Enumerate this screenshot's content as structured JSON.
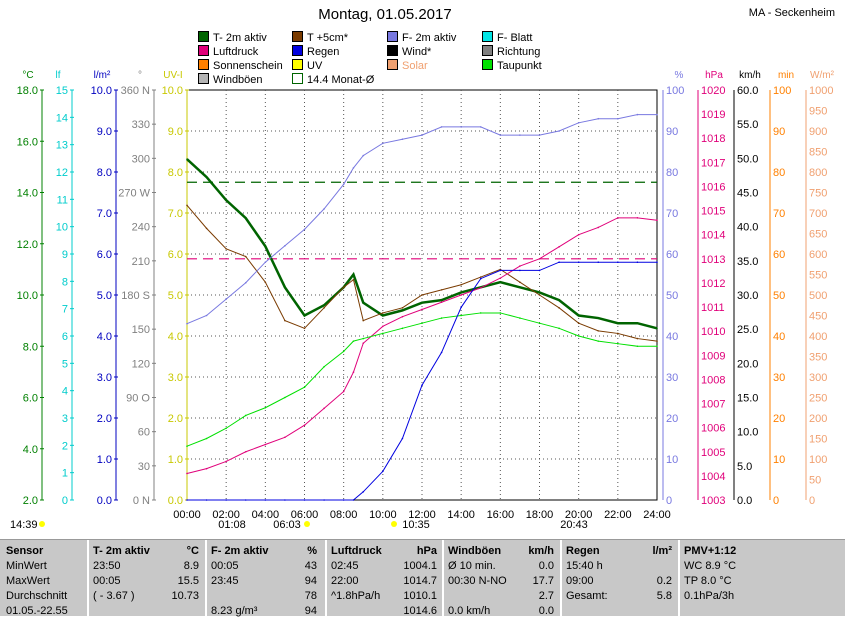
{
  "title": "Montag, 01.05.2017",
  "station": "MA - Seckenheim",
  "legend": [
    {
      "label": "T- 2m aktiv",
      "color": "#006400"
    },
    {
      "label": "T +5cm*",
      "color": "#7a3b00"
    },
    {
      "label": "F- 2m aktiv",
      "color": "#7878e0"
    },
    {
      "label": "F- Blatt",
      "color": "#00e5e5"
    },
    {
      "label": "Luftdruck",
      "color": "#e0007a"
    },
    {
      "label": "Regen",
      "color": "#0000e0"
    },
    {
      "label": "Wind*",
      "color": "#000000"
    },
    {
      "label": "Richtung",
      "color": "#808080"
    },
    {
      "label": "Sonnenschein",
      "color": "#ff8000"
    },
    {
      "label": "UV",
      "color": "#ffff00"
    },
    {
      "label": "Solar",
      "color": "#f0a070"
    },
    {
      "label": "Taupunkt",
      "color": "#00e000"
    },
    {
      "label": "Windböen",
      "color": "#b4b4b4"
    },
    {
      "label": "14.4 Monat-Ø",
      "color": "#006400"
    }
  ],
  "axes": {
    "temp": {
      "unit": "°C",
      "color": "#008000",
      "ticks": [
        "18.0",
        "16.0",
        "14.0",
        "12.0",
        "10.0",
        "8.0",
        "6.0",
        "4.0",
        "2.0"
      ]
    },
    "leaf": {
      "unit": "lf",
      "color": "#00cccc",
      "ticks": [
        "15",
        "14",
        "13",
        "12",
        "11",
        "10",
        "9",
        "8",
        "7",
        "6",
        "5",
        "4",
        "3",
        "2",
        "1",
        "0"
      ]
    },
    "rain": {
      "unit": "l/m²",
      "color": "#0000c0",
      "ticks": [
        "10.0",
        "9.0",
        "8.0",
        "7.0",
        "6.0",
        "5.0",
        "4.0",
        "3.0",
        "2.0",
        "1.0",
        "0.0"
      ]
    },
    "dir": {
      "unit": "°",
      "color": "#808080",
      "ticks": [
        "360 N",
        "330",
        "300",
        "270 W",
        "240",
        "210",
        "180 S",
        "150",
        "120",
        "90 O",
        "60",
        "30",
        "0 N"
      ]
    },
    "uv": {
      "unit": "UV-I",
      "color": "#c8c800",
      "ticks": [
        "10.0",
        "9.0",
        "8.0",
        "7.0",
        "6.0",
        "5.0",
        "4.0",
        "3.0",
        "2.0",
        "1.0",
        "0.0"
      ]
    },
    "hum": {
      "unit": "%",
      "color": "#7878e0",
      "ticks": [
        "100",
        "90",
        "80",
        "70",
        "60",
        "50",
        "40",
        "30",
        "20",
        "10",
        "0"
      ]
    },
    "press": {
      "unit": "hPa",
      "color": "#e0007a",
      "ticks": [
        "1020",
        "1019",
        "1018",
        "1017",
        "1016",
        "1015",
        "1014",
        "1013",
        "1012",
        "1011",
        "1010",
        "1009",
        "1008",
        "1007",
        "1006",
        "1005",
        "1004",
        "1003"
      ]
    },
    "wind": {
      "unit": "km/h",
      "color": "#000000",
      "ticks": [
        "60.0",
        "55.0",
        "50.0",
        "45.0",
        "40.0",
        "35.0",
        "30.0",
        "25.0",
        "20.0",
        "15.0",
        "10.0",
        "5.0",
        "0.0"
      ]
    },
    "sun": {
      "unit": "min",
      "color": "#ff8000",
      "ticks": [
        "100",
        "90",
        "80",
        "70",
        "60",
        "50",
        "40",
        "30",
        "20",
        "10",
        "0"
      ]
    },
    "solar": {
      "unit": "W/m²",
      "color": "#f0a070",
      "ticks": [
        "1000",
        "950",
        "900",
        "850",
        "800",
        "750",
        "700",
        "650",
        "600",
        "550",
        "500",
        "450",
        "400",
        "350",
        "300",
        "250",
        "200",
        "150",
        "100",
        "50",
        "0"
      ]
    }
  },
  "x_ticks": [
    "00:00",
    "02:00",
    "04:00",
    "06:00",
    "08:00",
    "10:00",
    "12:00",
    "14:00",
    "16:00",
    "18:00",
    "20:00",
    "22:00",
    "24:00"
  ],
  "sun_events": {
    "left": "14:39",
    "moonrise": "01:08",
    "sunrise": "06:03",
    "noon": "10:35",
    "sunset": "20:43"
  },
  "chart_data": {
    "type": "line",
    "title": "Montag, 01.05.2017",
    "x": [
      0,
      1,
      2,
      3,
      4,
      5,
      6,
      7,
      8,
      8.5,
      9,
      10,
      11,
      12,
      13,
      14,
      15,
      16,
      17,
      18,
      19,
      20,
      21,
      22,
      23,
      24
    ],
    "xlim": [
      0,
      24
    ],
    "series": [
      {
        "name": "T- 2m aktiv",
        "axis": "temp",
        "values": [
          15.3,
          14.6,
          13.7,
          13.0,
          11.9,
          10.3,
          9.2,
          9.6,
          10.3,
          10.8,
          9.7,
          9.2,
          9.4,
          9.7,
          9.8,
          10.1,
          10.3,
          10.5,
          10.3,
          10.1,
          9.8,
          9.2,
          9.1,
          8.9,
          8.9,
          8.7
        ]
      },
      {
        "name": "T +5cm*",
        "axis": "temp",
        "values": [
          13.5,
          12.6,
          11.8,
          11.5,
          10.5,
          9.0,
          8.7,
          9.5,
          10.3,
          10.6,
          9.0,
          9.3,
          9.5,
          10.0,
          10.2,
          10.4,
          10.7,
          11.0,
          10.5,
          10.0,
          9.5,
          8.9,
          8.6,
          8.5,
          8.3,
          8.2
        ]
      },
      {
        "name": "F- 2m aktiv",
        "axis": "hum",
        "values": [
          43,
          45,
          49,
          53,
          58,
          62,
          66,
          71,
          77,
          81,
          84,
          87,
          88,
          89,
          91,
          91,
          91,
          89,
          89,
          89,
          90,
          92,
          93,
          93,
          94,
          94
        ]
      },
      {
        "name": "Luftdruck",
        "axis": "press",
        "values": [
          1004.1,
          1004.3,
          1004.6,
          1005.0,
          1005.3,
          1005.6,
          1006.1,
          1006.8,
          1007.5,
          1008.3,
          1009.5,
          1010.2,
          1010.6,
          1010.9,
          1011.2,
          1011.5,
          1011.8,
          1012.2,
          1012.7,
          1013.0,
          1013.5,
          1014.0,
          1014.3,
          1014.7,
          1014.7,
          1014.6
        ]
      },
      {
        "name": "Taupunkt",
        "axis": "temp",
        "values": [
          4.1,
          4.4,
          4.8,
          5.3,
          5.6,
          6.0,
          6.4,
          7.2,
          7.8,
          8.2,
          8.3,
          8.5,
          8.7,
          8.9,
          9.1,
          9.2,
          9.3,
          9.3,
          9.1,
          8.9,
          8.7,
          8.4,
          8.2,
          8.1,
          8.0,
          8.0
        ]
      },
      {
        "name": "Regen",
        "axis": "rain",
        "values": [
          0,
          0,
          0,
          0,
          0,
          0,
          0,
          0,
          0,
          0,
          0.2,
          0.7,
          1.5,
          2.8,
          3.6,
          4.7,
          5.4,
          5.6,
          5.6,
          5.6,
          5.8,
          5.8,
          5.8,
          5.8,
          5.8,
          5.8
        ]
      }
    ],
    "reference_lines": [
      {
        "name": "14.4 Monat-Ø",
        "axis": "temp",
        "value": 14.4
      },
      {
        "name": "Luftdruck-Ø",
        "axis": "press",
        "value": 1013.0
      }
    ]
  },
  "footer": {
    "columns": [
      {
        "rows": [
          [
            "Sensor",
            ""
          ],
          [
            "MinWert",
            ""
          ],
          [
            "MaxWert",
            ""
          ],
          [
            "Durchschnitt",
            ""
          ],
          [
            "01.05.-22.55",
            ""
          ]
        ]
      },
      {
        "rows": [
          [
            "T- 2m aktiv",
            "°C"
          ],
          [
            "23:50",
            "8.9"
          ],
          [
            "00:05",
            "15.5"
          ],
          [
            "( - 3.67 )",
            "10.73"
          ],
          [
            "",
            ""
          ]
        ]
      },
      {
        "rows": [
          [
            "F- 2m aktiv",
            "%"
          ],
          [
            "00:05",
            "43"
          ],
          [
            "23:45",
            "94"
          ],
          [
            "",
            "78"
          ],
          [
            "8.23 g/m³",
            "94"
          ]
        ]
      },
      {
        "rows": [
          [
            "Luftdruck",
            "hPa"
          ],
          [
            "02:45",
            "1004.1"
          ],
          [
            "22:00",
            "1014.7"
          ],
          [
            "^1.8hPa/h",
            "1010.1"
          ],
          [
            "",
            "1014.6"
          ]
        ]
      },
      {
        "rows": [
          [
            "Windböen",
            "km/h"
          ],
          [
            "Ø 10 min.",
            "0.0"
          ],
          [
            "00:30   N-NO",
            "17.7"
          ],
          [
            "",
            "2.7"
          ],
          [
            "0.0 km/h",
            "0.0"
          ]
        ]
      },
      {
        "rows": [
          [
            "Regen",
            "l/m²"
          ],
          [
            "15:40 h",
            ""
          ],
          [
            "09:00",
            "0.2"
          ],
          [
            "Gesamt:",
            "5.8"
          ],
          [
            "",
            ""
          ]
        ]
      },
      {
        "rows": [
          [
            "PMV+1:12",
            ""
          ],
          [
            "WC 8.9 °C",
            ""
          ],
          [
            "TP 8.0 °C",
            ""
          ],
          [
            "0.1hPa/3h",
            ""
          ],
          [
            "",
            ""
          ]
        ]
      }
    ]
  }
}
